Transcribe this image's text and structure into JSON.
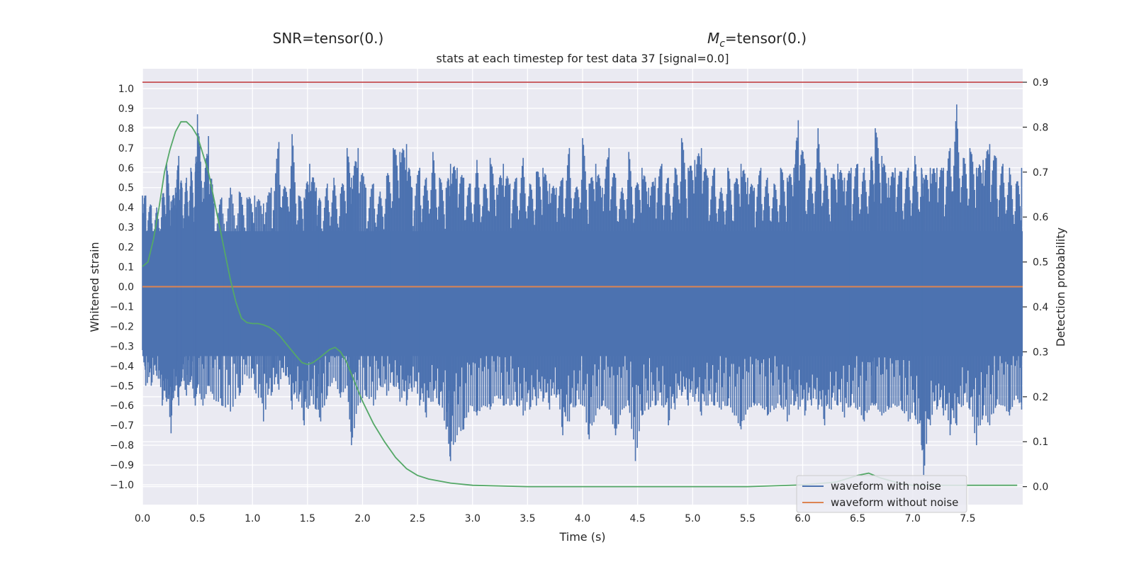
{
  "chart_data": {
    "type": "line",
    "snr_title": "SNR=tensor(0.)",
    "mc_title_symbol": "M",
    "mc_title_subscript": "c",
    "mc_title_value": "=tensor(0.)",
    "title": "stats at each timestep for test data 37 [signal=0.0]",
    "xlabel": "Time (s)",
    "ylabel": "Whitened strain",
    "y2label": "Detection probability",
    "xlim": [
      0.0,
      8.0
    ],
    "ylim": [
      -1.1,
      1.1
    ],
    "y2lim": [
      -0.04,
      0.93
    ],
    "xticks": [
      0.0,
      0.5,
      1.0,
      1.5,
      2.0,
      2.5,
      3.0,
      3.5,
      4.0,
      4.5,
      5.0,
      5.5,
      6.0,
      6.5,
      7.0,
      7.5
    ],
    "xtick_labels": [
      "0.0",
      "0.5",
      "1.0",
      "1.5",
      "2.0",
      "2.5",
      "3.0",
      "3.5",
      "4.0",
      "4.5",
      "5.0",
      "5.5",
      "6.0",
      "6.5",
      "7.0",
      "7.5"
    ],
    "yticks": [
      1.0,
      0.9,
      0.8,
      0.7,
      0.6,
      0.5,
      0.4,
      0.3,
      0.2,
      0.1,
      0.0,
      -0.1,
      -0.2,
      -0.3,
      -0.4,
      -0.5,
      -0.6,
      -0.7,
      -0.8,
      -0.9,
      -1.0
    ],
    "ytick_labels": [
      "1.0",
      "0.9",
      "0.8",
      "0.7",
      "0.6",
      "0.5",
      "0.4",
      "0.3",
      "0.2",
      "0.1",
      "0.0",
      "−0.1",
      "−0.2",
      "−0.3",
      "−0.4",
      "−0.5",
      "−0.6",
      "−0.7",
      "−0.8",
      "−0.9",
      "−1.0"
    ],
    "y2ticks": [
      0.9,
      0.8,
      0.7,
      0.6,
      0.5,
      0.4,
      0.3,
      0.2,
      0.1,
      0.0
    ],
    "y2tick_labels": [
      "0.9",
      "0.8",
      "0.7",
      "0.6",
      "0.5",
      "0.4",
      "0.3",
      "0.2",
      "0.1",
      "0.0"
    ],
    "threshold": 0.9,
    "colors": {
      "noise": "#4c72b0",
      "clean": "#dd8452",
      "prob": "#55a868",
      "threshold": "#c44e52",
      "axes_bg": "#eaeaf2",
      "grid": "#ffffff"
    },
    "series": [
      {
        "name": "waveform with noise",
        "axis": "left",
        "band_envelope": {
          "upper": 0.28,
          "lower": -0.35
        },
        "spikes": [
          [
            0.0,
            0.46,
            -0.32
          ],
          [
            0.03,
            0.46,
            -0.5
          ],
          [
            0.08,
            0.41,
            -0.5
          ],
          [
            0.13,
            0.4,
            -0.45
          ],
          [
            0.18,
            0.45,
            -0.6
          ],
          [
            0.22,
            0.62,
            -0.58
          ],
          [
            0.26,
            0.43,
            -0.74
          ],
          [
            0.3,
            0.5,
            -0.5
          ],
          [
            0.33,
            0.66,
            -0.6
          ],
          [
            0.36,
            0.5,
            -0.46
          ],
          [
            0.4,
            0.55,
            -0.55
          ],
          [
            0.44,
            0.6,
            -0.47
          ],
          [
            0.48,
            0.58,
            -0.6
          ],
          [
            0.5,
            0.87,
            -0.5
          ],
          [
            0.55,
            0.5,
            -0.6
          ],
          [
            0.6,
            0.76,
            -0.5
          ],
          [
            0.65,
            0.42,
            -0.57
          ],
          [
            0.72,
            0.45,
            -0.6
          ],
          [
            0.8,
            0.5,
            -0.63
          ],
          [
            0.88,
            0.48,
            -0.55
          ],
          [
            0.95,
            0.45,
            -0.45
          ],
          [
            1.02,
            0.46,
            -0.52
          ],
          [
            1.1,
            0.42,
            -0.68
          ],
          [
            1.17,
            0.5,
            -0.55
          ],
          [
            1.24,
            0.73,
            -0.52
          ],
          [
            1.3,
            0.5,
            -0.45
          ],
          [
            1.36,
            0.77,
            -0.62
          ],
          [
            1.42,
            0.46,
            -0.58
          ],
          [
            1.47,
            0.45,
            -0.7
          ],
          [
            1.52,
            0.62,
            -0.6
          ],
          [
            1.58,
            0.5,
            -0.62
          ],
          [
            1.62,
            0.43,
            -0.68
          ],
          [
            1.68,
            0.52,
            -0.55
          ],
          [
            1.74,
            0.55,
            -0.46
          ],
          [
            1.8,
            0.47,
            -0.56
          ],
          [
            1.86,
            0.7,
            -0.5
          ],
          [
            1.9,
            0.55,
            -0.8
          ],
          [
            1.96,
            0.7,
            -0.6
          ],
          [
            2.03,
            0.5,
            -0.55
          ],
          [
            2.1,
            0.52,
            -0.6
          ],
          [
            2.16,
            0.48,
            -0.5
          ],
          [
            2.22,
            0.56,
            -0.55
          ],
          [
            2.28,
            0.7,
            -0.5
          ],
          [
            2.34,
            0.68,
            -0.58
          ],
          [
            2.4,
            0.72,
            -0.6
          ],
          [
            2.45,
            0.5,
            -0.53
          ],
          [
            2.52,
            0.6,
            -0.6
          ],
          [
            2.58,
            0.55,
            -0.66
          ],
          [
            2.64,
            0.68,
            -0.58
          ],
          [
            2.7,
            0.55,
            -0.6
          ],
          [
            2.76,
            0.5,
            -0.72
          ],
          [
            2.8,
            0.62,
            -0.88
          ],
          [
            2.86,
            0.6,
            -0.75
          ],
          [
            2.92,
            0.55,
            -0.72
          ],
          [
            2.98,
            0.52,
            -0.6
          ],
          [
            3.04,
            0.64,
            -0.65
          ],
          [
            3.1,
            0.5,
            -0.6
          ],
          [
            3.16,
            0.65,
            -0.62
          ],
          [
            3.22,
            0.5,
            -0.55
          ],
          [
            3.28,
            0.62,
            -0.6
          ],
          [
            3.34,
            0.52,
            -0.6
          ],
          [
            3.4,
            0.55,
            -0.6
          ],
          [
            3.46,
            0.65,
            -0.65
          ],
          [
            3.52,
            0.52,
            -0.62
          ],
          [
            3.58,
            0.58,
            -0.6
          ],
          [
            3.64,
            0.6,
            -0.58
          ],
          [
            3.7,
            0.52,
            -0.62
          ],
          [
            3.76,
            0.5,
            -0.56
          ],
          [
            3.82,
            0.55,
            -0.75
          ],
          [
            3.88,
            0.7,
            -0.68
          ],
          [
            3.94,
            0.5,
            -0.6
          ],
          [
            4.0,
            0.75,
            -0.6
          ],
          [
            4.06,
            0.52,
            -0.77
          ],
          [
            4.12,
            0.62,
            -0.65
          ],
          [
            4.18,
            0.5,
            -0.6
          ],
          [
            4.24,
            0.7,
            -0.62
          ],
          [
            4.3,
            0.55,
            -0.75
          ],
          [
            4.36,
            0.5,
            -0.62
          ],
          [
            4.42,
            0.68,
            -0.6
          ],
          [
            4.48,
            0.5,
            -0.88
          ],
          [
            4.54,
            0.6,
            -0.65
          ],
          [
            4.6,
            0.5,
            -0.62
          ],
          [
            4.66,
            0.55,
            -0.6
          ],
          [
            4.72,
            0.62,
            -0.6
          ],
          [
            4.78,
            0.55,
            -0.7
          ],
          [
            4.84,
            0.6,
            -0.62
          ],
          [
            4.9,
            0.75,
            -0.55
          ],
          [
            4.96,
            0.6,
            -0.6
          ],
          [
            5.02,
            0.64,
            -0.58
          ],
          [
            5.08,
            0.7,
            -0.65
          ],
          [
            5.14,
            0.55,
            -0.6
          ],
          [
            5.2,
            0.6,
            -0.6
          ],
          [
            5.26,
            0.5,
            -0.62
          ],
          [
            5.32,
            0.6,
            -0.6
          ],
          [
            5.38,
            0.52,
            -0.65
          ],
          [
            5.44,
            0.62,
            -0.72
          ],
          [
            5.5,
            0.55,
            -0.62
          ],
          [
            5.56,
            0.5,
            -0.6
          ],
          [
            5.62,
            0.6,
            -0.6
          ],
          [
            5.68,
            0.55,
            -0.65
          ],
          [
            5.74,
            0.52,
            -0.62
          ],
          [
            5.8,
            0.6,
            -0.6
          ],
          [
            5.86,
            0.55,
            -0.68
          ],
          [
            5.92,
            0.6,
            -0.6
          ],
          [
            5.96,
            0.84,
            -0.62
          ],
          [
            6.02,
            0.62,
            -0.65
          ],
          [
            6.08,
            0.55,
            -0.6
          ],
          [
            6.14,
            0.8,
            -0.62
          ],
          [
            6.2,
            0.6,
            -0.7
          ],
          [
            6.26,
            0.55,
            -0.62
          ],
          [
            6.32,
            0.62,
            -0.6
          ],
          [
            6.38,
            0.55,
            -0.66
          ],
          [
            6.44,
            0.6,
            -0.6
          ],
          [
            6.5,
            0.62,
            -0.62
          ],
          [
            6.56,
            0.6,
            -0.68
          ],
          [
            6.62,
            0.65,
            -0.6
          ],
          [
            6.66,
            0.8,
            -0.6
          ],
          [
            6.72,
            0.66,
            -0.65
          ],
          [
            6.78,
            0.55,
            -0.62
          ],
          [
            6.84,
            0.6,
            -0.6
          ],
          [
            6.9,
            0.58,
            -0.62
          ],
          [
            6.96,
            0.6,
            -0.68
          ],
          [
            7.02,
            0.66,
            -0.65
          ],
          [
            7.08,
            0.6,
            -0.8
          ],
          [
            7.1,
            0.55,
            -0.95
          ],
          [
            7.16,
            0.6,
            -0.7
          ],
          [
            7.22,
            0.6,
            -0.62
          ],
          [
            7.28,
            0.6,
            -0.65
          ],
          [
            7.34,
            0.7,
            -0.75
          ],
          [
            7.4,
            0.92,
            -0.7
          ],
          [
            7.46,
            0.65,
            -0.6
          ],
          [
            7.52,
            0.7,
            -0.62
          ],
          [
            7.58,
            0.6,
            -0.8
          ],
          [
            7.64,
            0.64,
            -0.65
          ],
          [
            7.7,
            0.72,
            -0.7
          ],
          [
            7.76,
            0.65,
            -0.6
          ],
          [
            7.82,
            0.62,
            -0.6
          ],
          [
            7.88,
            0.6,
            -0.65
          ],
          [
            7.94,
            0.52,
            -0.55
          ],
          [
            7.99,
            0.6,
            -0.62
          ]
        ]
      },
      {
        "name": "waveform without noise",
        "axis": "left",
        "x": [
          0.0,
          8.0
        ],
        "y": [
          0.0,
          0.0
        ]
      },
      {
        "name": "Detection probability",
        "axis": "right",
        "x": [
          0.0,
          0.05,
          0.1,
          0.15,
          0.2,
          0.25,
          0.3,
          0.35,
          0.4,
          0.45,
          0.5,
          0.55,
          0.6,
          0.65,
          0.7,
          0.75,
          0.8,
          0.85,
          0.9,
          0.95,
          1.0,
          1.05,
          1.1,
          1.15,
          1.2,
          1.25,
          1.3,
          1.35,
          1.4,
          1.45,
          1.5,
          1.55,
          1.6,
          1.65,
          1.7,
          1.75,
          1.8,
          1.85,
          1.9,
          1.95,
          2.0,
          2.1,
          2.2,
          2.3,
          2.4,
          2.5,
          2.6,
          2.8,
          3.0,
          3.5,
          4.0,
          4.5,
          5.0,
          5.5,
          6.0,
          6.3,
          6.5,
          6.6,
          6.7,
          6.9,
          7.0,
          7.5,
          7.95
        ],
        "y": [
          0.49,
          0.5,
          0.55,
          0.62,
          0.7,
          0.75,
          0.79,
          0.812,
          0.812,
          0.8,
          0.78,
          0.74,
          0.7,
          0.64,
          0.58,
          0.52,
          0.46,
          0.41,
          0.375,
          0.365,
          0.363,
          0.363,
          0.36,
          0.355,
          0.347,
          0.335,
          0.32,
          0.305,
          0.29,
          0.276,
          0.272,
          0.276,
          0.285,
          0.295,
          0.305,
          0.31,
          0.3,
          0.28,
          0.25,
          0.22,
          0.19,
          0.14,
          0.1,
          0.065,
          0.04,
          0.025,
          0.017,
          0.008,
          0.003,
          0.0,
          0.0,
          0.0,
          0.0,
          0.0,
          0.004,
          0.01,
          0.025,
          0.03,
          0.02,
          0.006,
          0.003,
          0.003,
          0.003
        ]
      },
      {
        "name": "threshold",
        "axis": "right",
        "x": [
          0.0,
          8.0
        ],
        "y": [
          0.9,
          0.9
        ]
      }
    ],
    "legend": {
      "position": "lower-right",
      "entries": [
        "waveform with noise",
        "waveform without noise"
      ]
    }
  }
}
